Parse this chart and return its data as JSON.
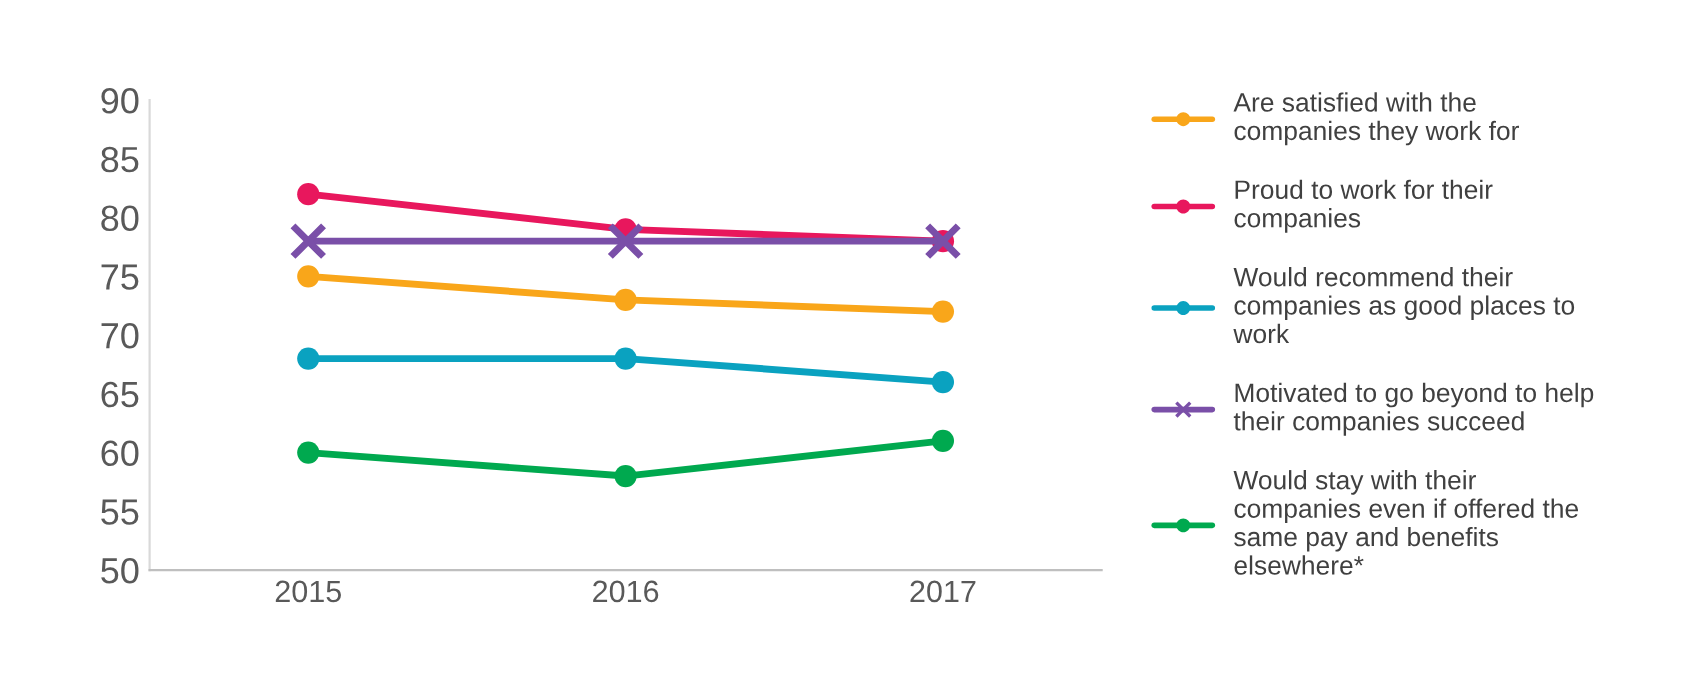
{
  "chart_data": {
    "type": "line",
    "categories": [
      "2015",
      "2016",
      "2017"
    ],
    "series": [
      {
        "name": "Are satisfied with the companies they work for",
        "color": "#f9a61a",
        "marker": "circle",
        "values": [
          75,
          73,
          72
        ]
      },
      {
        "name": "Proud to work for their companies",
        "color": "#e8175d",
        "marker": "circle",
        "values": [
          82,
          79,
          78
        ]
      },
      {
        "name": "Would recommend their companies as good places to work",
        "color": "#0aa2c0",
        "marker": "circle",
        "values": [
          68,
          68,
          66
        ]
      },
      {
        "name": "Motivated to go beyond to help their companies succeed",
        "color": "#7a4fa8",
        "marker": "cross",
        "values": [
          78,
          78,
          78
        ]
      },
      {
        "name": "Would stay with their companies even if offered the same pay and benefits elsewhere*",
        "color": "#00a94f",
        "marker": "circle",
        "values": [
          60,
          58,
          61
        ]
      }
    ],
    "ylim": [
      50,
      90
    ],
    "yticks": [
      50,
      55,
      60,
      65,
      70,
      75,
      80,
      85,
      90
    ],
    "grid": false,
    "legend": "right"
  }
}
